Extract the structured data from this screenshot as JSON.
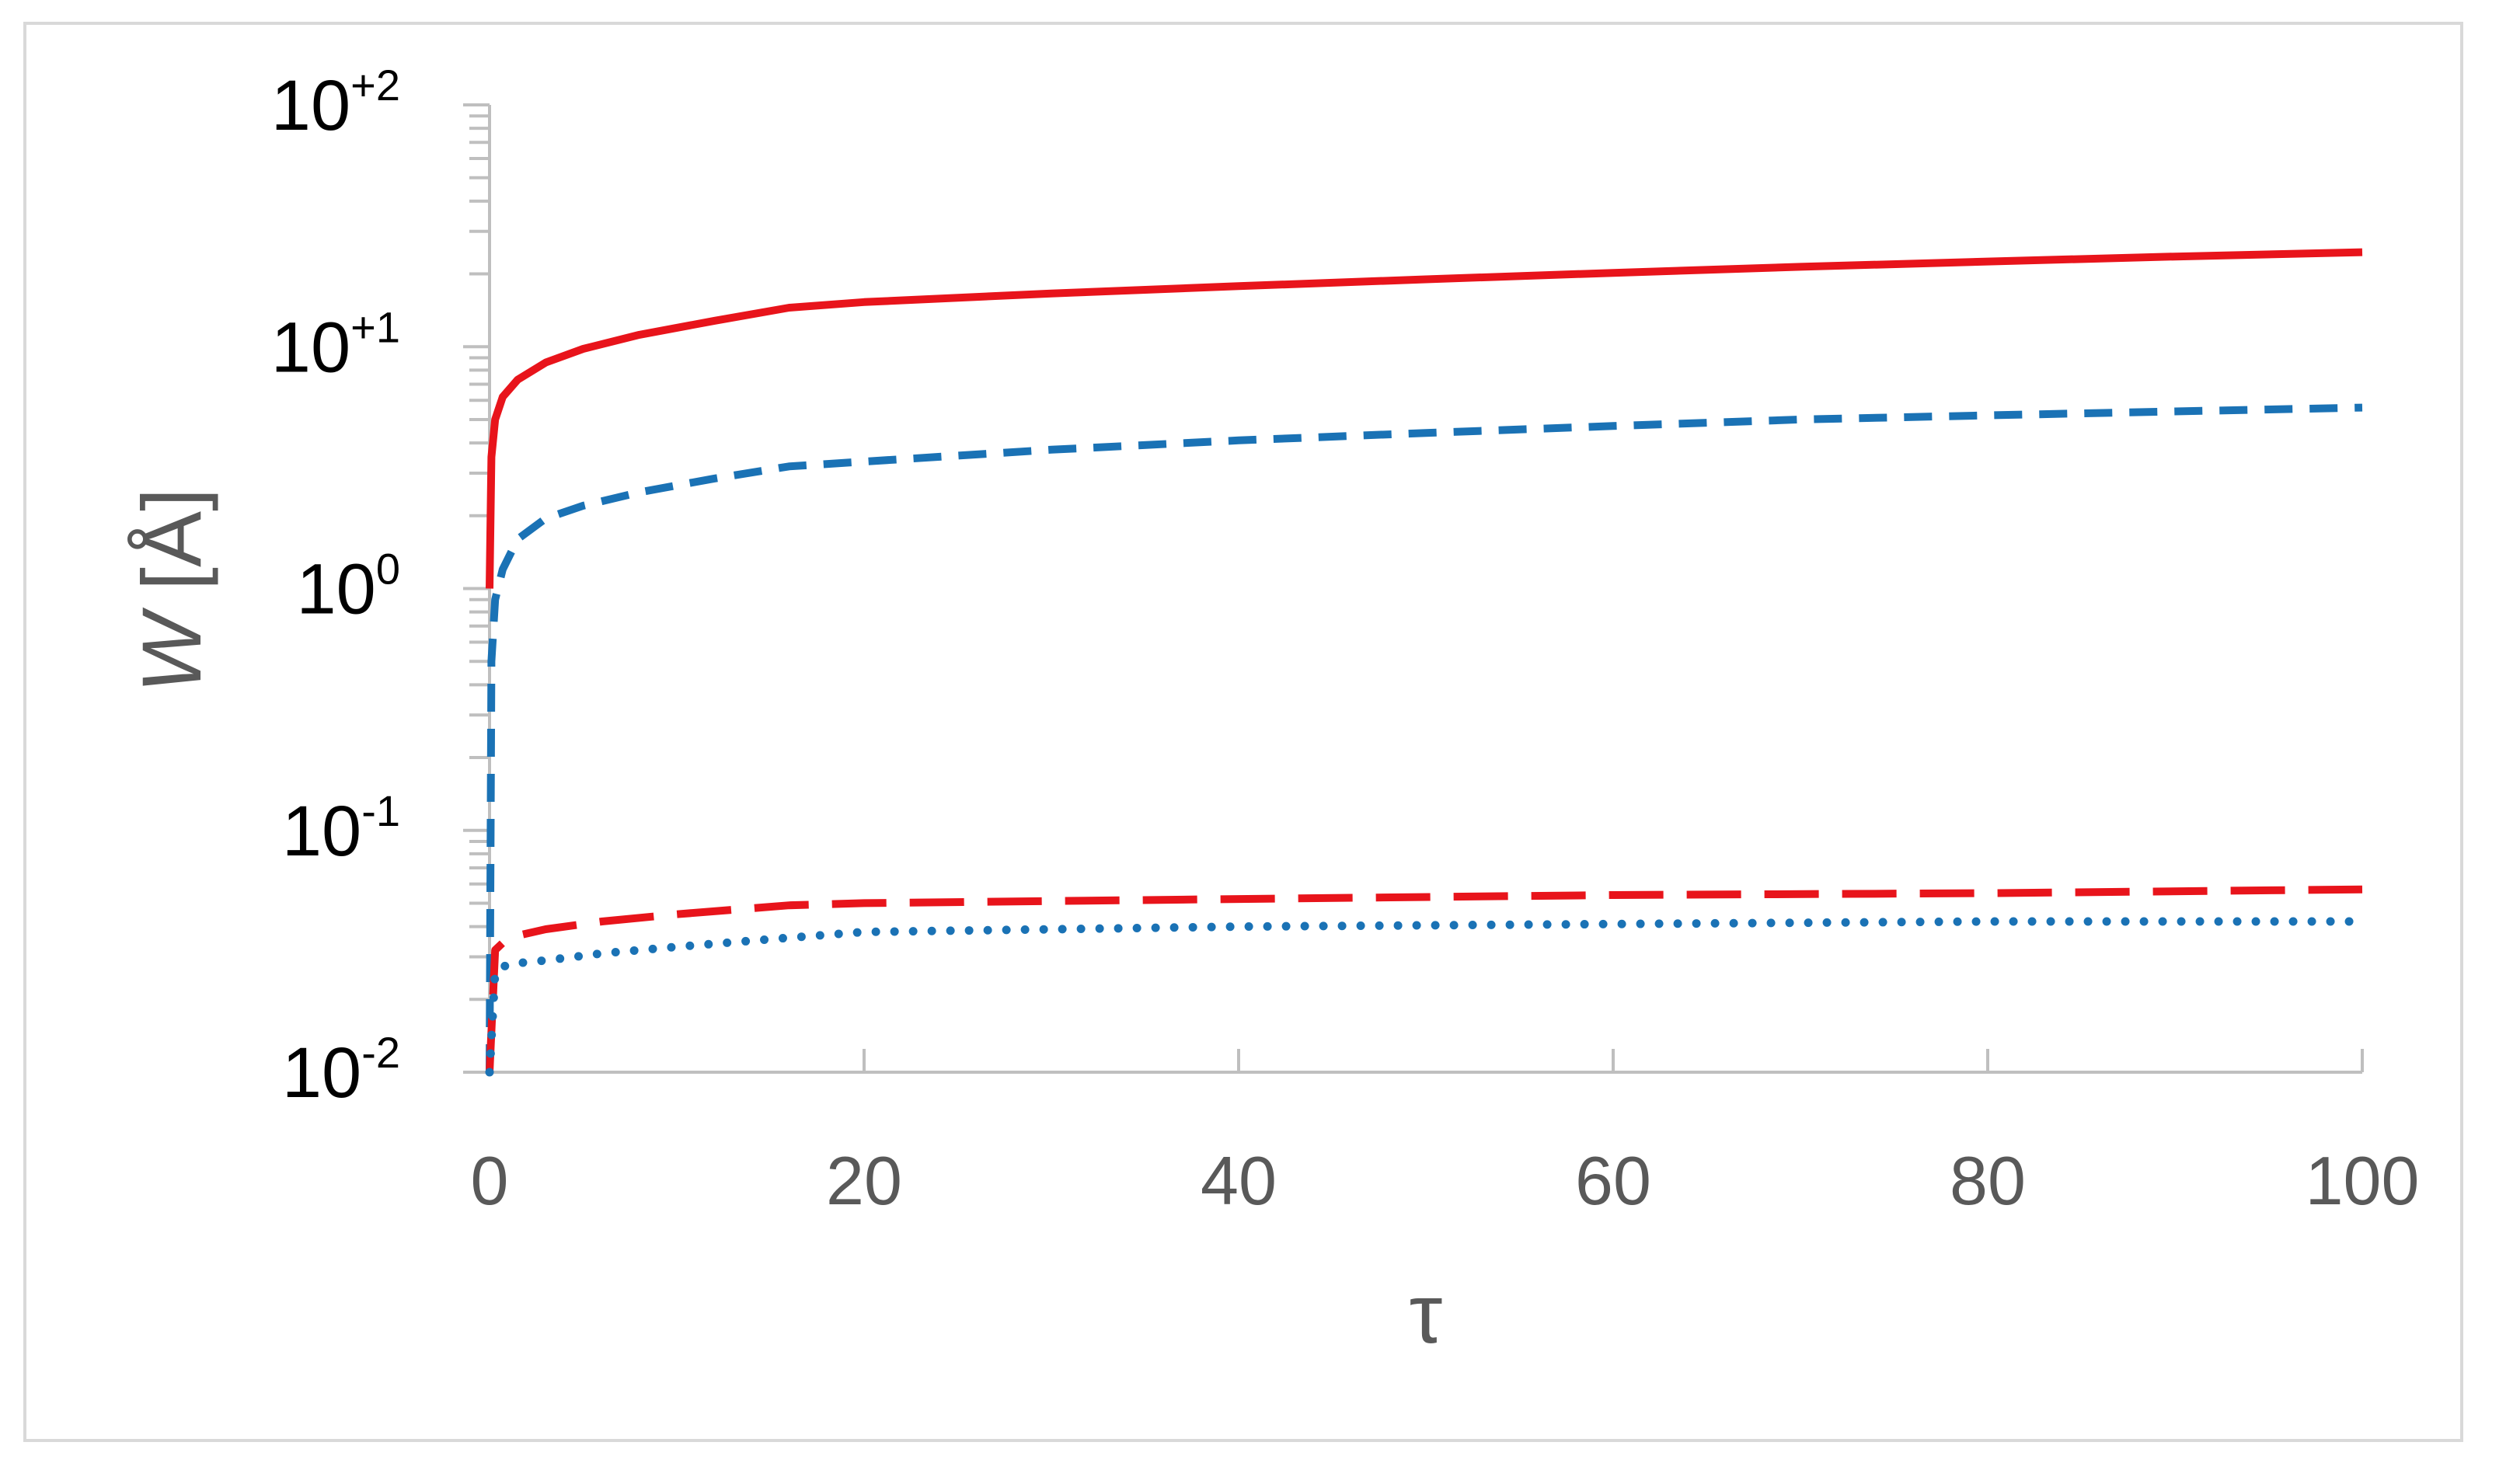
{
  "chart_data": {
    "type": "line",
    "title": "",
    "xlabel": "τ",
    "ylabel_italic": "W",
    "ylabel_unit": " [Å]",
    "xlim": [
      0,
      100
    ],
    "ylim": [
      0.01,
      100
    ],
    "y_scale": "log",
    "x_ticks": [
      "0",
      "20",
      "40",
      "60",
      "80",
      "100"
    ],
    "x_tick_values": [
      0,
      20,
      40,
      60,
      80,
      100
    ],
    "y_ticks": [
      {
        "base": "10",
        "exp": "+2",
        "value": 100
      },
      {
        "base": "10",
        "exp": "+1",
        "value": 10
      },
      {
        "base": "10",
        "exp": "0",
        "value": 1
      },
      {
        "base": "10",
        "exp": "-1",
        "value": 0.1
      },
      {
        "base": "10",
        "exp": "-2",
        "value": 0.01
      }
    ],
    "grid": false,
    "legend": "none",
    "series": [
      {
        "style": "solid",
        "color": "#e8141b",
        "x": [
          0,
          0.1,
          0.3,
          0.7,
          1.5,
          3,
          5,
          8,
          12,
          16,
          20,
          30,
          40,
          50,
          60,
          70,
          80,
          90,
          100
        ],
        "y": [
          1,
          3.5,
          5,
          6.2,
          7.3,
          8.6,
          9.8,
          11.2,
          12.8,
          14.5,
          15.3,
          16.6,
          17.8,
          19,
          20.2,
          21.4,
          22.5,
          23.6,
          24.6
        ]
      },
      {
        "style": "dashed",
        "color": "#1a72b5",
        "x": [
          0,
          0.1,
          0.3,
          0.7,
          1.5,
          3,
          5,
          8,
          12,
          16,
          20,
          30,
          40,
          50,
          60,
          70,
          80,
          90,
          100
        ],
        "y": [
          0.01,
          0.5,
          0.9,
          1.2,
          1.6,
          1.95,
          2.2,
          2.5,
          2.85,
          3.2,
          3.35,
          3.75,
          4.1,
          4.4,
          4.7,
          5.0,
          5.2,
          5.4,
          5.6
        ]
      },
      {
        "style": "long-dashed",
        "color": "#e8141b",
        "x": [
          0,
          0.3,
          1,
          3,
          6,
          10,
          16,
          20,
          40,
          60,
          80,
          100
        ],
        "y": [
          0.01,
          0.032,
          0.036,
          0.039,
          0.042,
          0.045,
          0.049,
          0.05,
          0.052,
          0.054,
          0.055,
          0.057
        ]
      },
      {
        "style": "dotted",
        "color": "#1a72b5",
        "x": [
          0,
          0.3,
          1,
          3,
          6,
          10,
          16,
          20,
          40,
          60,
          80,
          100
        ],
        "y": [
          0.01,
          0.026,
          0.028,
          0.029,
          0.031,
          0.033,
          0.036,
          0.038,
          0.04,
          0.041,
          0.042,
          0.042
        ]
      }
    ],
    "colors": {
      "axis": "#bfbfbf",
      "frame": "#d9d9d9"
    }
  }
}
